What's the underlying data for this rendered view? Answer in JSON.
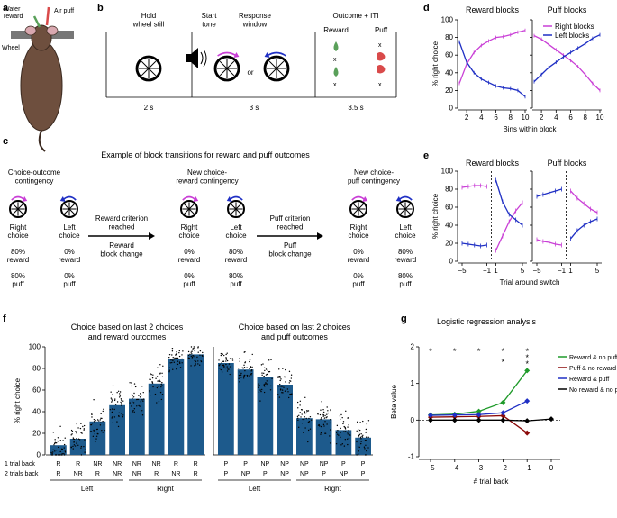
{
  "colors": {
    "magenta": "#c93fd6",
    "blue": "#1f2fc4",
    "green": "#1f9a2a",
    "darkred": "#8b0a0a",
    "black": "#000000",
    "bar": "#1d5a8c",
    "gray": "#777777",
    "water": "#5aa05a",
    "puff": "#d94a4a"
  },
  "panel_labels": {
    "a": "a",
    "b": "b",
    "c": "c",
    "d": "d",
    "e": "e",
    "f": "f",
    "g": "g"
  },
  "panel_a": {
    "water_reward": "Water\nreward",
    "air_puff": "Air puff",
    "wheel": "Wheel"
  },
  "panel_b": {
    "hold": "Hold\nwheel still",
    "start": "Start\ntone",
    "response": "Response\nwindow",
    "or": "or",
    "outcome": "Outcome + ITI",
    "reward": "Reward",
    "puff": "Puff",
    "t1": "2 s",
    "t2": "3 s",
    "t3": "3.5 s"
  },
  "panel_c": {
    "title": "Example of block transitions for reward and puff outcomes",
    "h1": "Choice-outcome\ncontingency",
    "h2": "New choice-\nreward contingency",
    "h3": "New choice-\npuff contingency",
    "right_choice": "Right\nchoice",
    "left_choice": "Left\nchoice",
    "arrow1_top": "Reward criterion\nreached",
    "arrow1_bot": "Reward\nblock change",
    "arrow2_top": "Puff criterion\nreached",
    "arrow2_bot": "Puff\nblock change",
    "g1": {
      "r_reward": "80%\nreward",
      "r_puff": "80%\npuff",
      "l_reward": "0%\nreward",
      "l_puff": "0%\npuff"
    },
    "g2": {
      "r_reward": "0%\nreward",
      "r_puff": "0%\npuff",
      "l_reward": "80%\nreward",
      "l_puff": "80%\npuff"
    },
    "g3": {
      "r_reward": "0%\nreward",
      "r_puff": "0%\npuff",
      "l_reward": "80%\nreward",
      "l_puff": "80%\npuff"
    }
  },
  "chart_data": [
    {
      "id": "d",
      "type": "line",
      "panels": [
        "Reward blocks",
        "Puff blocks"
      ],
      "ylabel": "% right choice",
      "xlabel": "Bins within block",
      "ylim": [
        0,
        100
      ],
      "yticks": [
        0,
        20,
        40,
        60,
        80,
        100
      ],
      "xlim": [
        1,
        10
      ],
      "xticks": [
        2,
        4,
        6,
        8,
        10
      ],
      "legend": [
        "Right blocks",
        "Left blocks"
      ],
      "x": [
        1,
        2,
        3,
        4,
        5,
        6,
        7,
        8,
        9,
        10
      ],
      "series": [
        {
          "panel": 0,
          "name": "Right blocks",
          "color": "magenta",
          "values": [
            28,
            50,
            63,
            71,
            76,
            80,
            81,
            83,
            86,
            88
          ]
        },
        {
          "panel": 0,
          "name": "Left blocks",
          "color": "blue",
          "values": [
            75,
            52,
            40,
            33,
            29,
            25,
            23,
            22,
            20,
            13
          ]
        },
        {
          "panel": 1,
          "name": "Right blocks",
          "color": "magenta",
          "values": [
            82,
            78,
            72,
            66,
            60,
            54,
            47,
            38,
            28,
            20
          ]
        },
        {
          "panel": 1,
          "name": "Left blocks",
          "color": "blue",
          "values": [
            30,
            38,
            46,
            52,
            58,
            63,
            68,
            73,
            79,
            83
          ]
        }
      ]
    },
    {
      "id": "e",
      "type": "line",
      "panels": [
        "Reward blocks",
        "Puff blocks"
      ],
      "ylabel": "% right choice",
      "xlabel": "Trial around switch",
      "ylim": [
        0,
        100
      ],
      "yticks": [
        0,
        20,
        40,
        60,
        80,
        100
      ],
      "xticks_labels": [
        "−5",
        "−1",
        "1",
        "5"
      ],
      "series": [
        {
          "panel": 0,
          "color": "magenta",
          "x": [
            -5,
            -4,
            -3,
            -2,
            -1
          ],
          "values": [
            82,
            83,
            84,
            84,
            83
          ]
        },
        {
          "panel": 0,
          "color": "blue",
          "x": [
            -5,
            -4,
            -3,
            -2,
            -1
          ],
          "values": [
            20,
            19,
            18,
            17,
            18
          ]
        },
        {
          "panel": 0,
          "color": "magenta",
          "x": [
            1,
            2,
            3,
            4,
            5
          ],
          "values": [
            12,
            28,
            44,
            56,
            65
          ]
        },
        {
          "panel": 0,
          "color": "blue",
          "x": [
            1,
            2,
            3,
            4,
            5
          ],
          "values": [
            90,
            66,
            52,
            46,
            40
          ]
        },
        {
          "panel": 1,
          "color": "blue",
          "x": [
            -5,
            -4,
            -3,
            -2,
            -1
          ],
          "values": [
            72,
            74,
            76,
            78,
            80
          ]
        },
        {
          "panel": 1,
          "color": "magenta",
          "x": [
            -5,
            -4,
            -3,
            -2,
            -1
          ],
          "values": [
            24,
            22,
            21,
            19,
            18
          ]
        },
        {
          "panel": 1,
          "color": "magenta",
          "x": [
            1,
            2,
            3,
            4,
            5
          ],
          "values": [
            78,
            70,
            64,
            58,
            54
          ]
        },
        {
          "panel": 1,
          "color": "blue",
          "x": [
            1,
            2,
            3,
            4,
            5
          ],
          "values": [
            25,
            34,
            40,
            44,
            47
          ]
        }
      ]
    },
    {
      "id": "f",
      "type": "bar",
      "ylabel": "% right choice",
      "ylim": [
        0,
        100
      ],
      "yticks": [
        0,
        20,
        40,
        60,
        80,
        100
      ],
      "row_labels": [
        "1 trial back",
        "2 trials back"
      ],
      "panels": [
        {
          "title": "Choice based on last 2 choices\nand reward outcomes",
          "cat1": [
            "R",
            "R",
            "NR",
            "NR",
            "NR",
            "NR",
            "R",
            "R"
          ],
          "cat2": [
            "R",
            "NR",
            "R",
            "NR",
            "NR",
            "R",
            "NR",
            "R"
          ],
          "values": [
            9,
            15,
            31,
            46,
            52,
            66,
            89,
            93
          ],
          "groups": [
            "Left",
            "Right"
          ]
        },
        {
          "title": "Choice based on last 2 choices\nand puff outcomes",
          "cat1": [
            "P",
            "P",
            "NP",
            "NP",
            "NP",
            "NP",
            "P",
            "P"
          ],
          "cat2": [
            "P",
            "NP",
            "P",
            "NP",
            "NP",
            "P",
            "NP",
            "P"
          ],
          "values": [
            85,
            79,
            72,
            65,
            34,
            33,
            23,
            16
          ],
          "groups": [
            "Left",
            "Right"
          ]
        }
      ]
    },
    {
      "id": "g",
      "type": "line",
      "title": "Logistic regression analysis",
      "ylabel": "Beta value",
      "xlabel": "# trial back",
      "ylim": [
        -1,
        2
      ],
      "yticks": [
        -1,
        0,
        1,
        2
      ],
      "x": [
        -5,
        -4,
        -3,
        -2,
        -1,
        0
      ],
      "xticks": [
        "−5",
        "−4",
        "−3",
        "−2",
        "−1",
        "0"
      ],
      "series": [
        {
          "name": "Reward & no puff",
          "color": "green",
          "x": [
            -5,
            -4,
            -3,
            -2,
            -1
          ],
          "values": [
            0.14,
            0.16,
            0.24,
            0.48,
            1.35
          ]
        },
        {
          "name": "Puff & no reward",
          "color": "darkred",
          "x": [
            -5,
            -4,
            -3,
            -2,
            -1
          ],
          "values": [
            0.08,
            0.09,
            0.1,
            0.12,
            -0.35
          ]
        },
        {
          "name": "Reward & puff",
          "color": "blue",
          "x": [
            -5,
            -4,
            -3,
            -2,
            -1
          ],
          "values": [
            0.13,
            0.14,
            0.15,
            0.2,
            0.52
          ]
        },
        {
          "name": "No reward & no puff",
          "color": "black",
          "x": [
            -5,
            -4,
            -3,
            -2,
            -1,
            0
          ],
          "values": [
            0.0,
            0.0,
            0.0,
            0.0,
            -0.02,
            0.03
          ]
        }
      ],
      "significance": {
        "green": [
          "*",
          "*",
          "*",
          "*",
          "*"
        ],
        "blue_m2": "*",
        "darkred_m1": "*",
        "blue_m1": "*"
      }
    }
  ]
}
